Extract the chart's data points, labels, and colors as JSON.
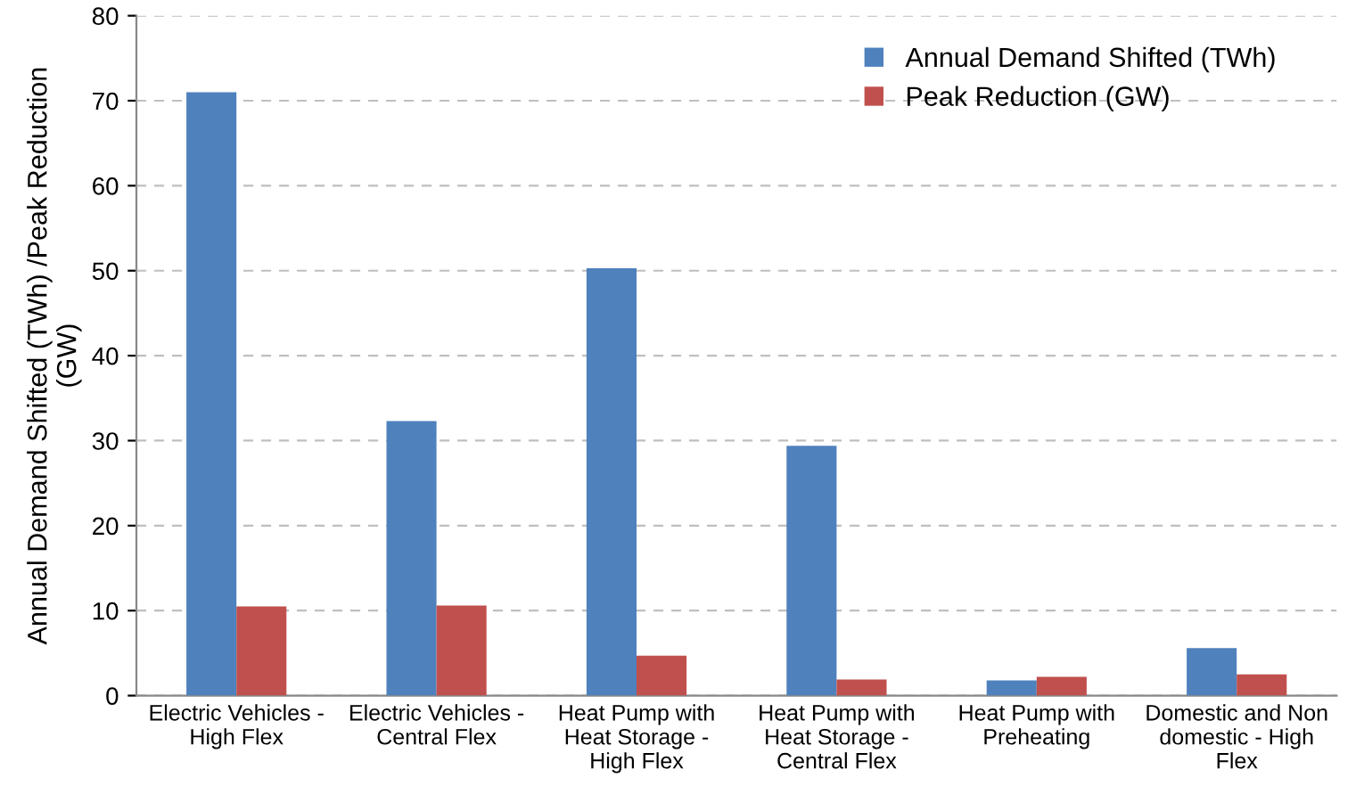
{
  "chart_data": {
    "type": "bar",
    "ylabel": "Annual Demand Shifted (TWh) /Peak Reduction\n(GW)",
    "categories": [
      "Electric Vehicles -\nHigh Flex",
      "Electric Vehicles -\nCentral Flex",
      "Heat Pump with\nHeat Storage -\nHigh Flex",
      "Heat Pump with\nHeat Storage -\nCentral Flex",
      "Heat Pump with\nPreheating",
      "Domestic and Non\ndomestic - High\nFlex"
    ],
    "series": [
      {
        "name": "Annual Demand Shifted (TWh)",
        "color": "#4f81bd",
        "values": [
          71.0,
          32.3,
          50.3,
          29.4,
          1.8,
          5.6
        ]
      },
      {
        "name": "Peak Reduction (GW)",
        "color": "#c0504d",
        "values": [
          10.5,
          10.6,
          4.7,
          1.9,
          2.2,
          2.5
        ]
      }
    ],
    "ylim": [
      0,
      80
    ],
    "yticks": [
      0,
      10,
      20,
      30,
      40,
      50,
      60,
      70,
      80
    ],
    "grid": "y",
    "legend": "top right"
  }
}
